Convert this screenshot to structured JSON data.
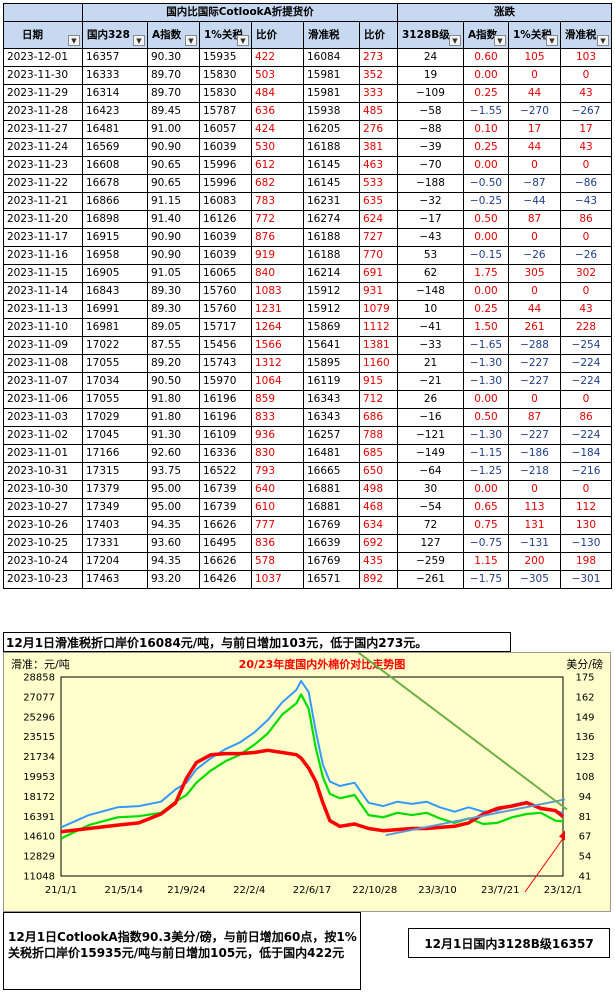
{
  "table": {
    "group_header_left": "国内比国际CotlookA折提货价",
    "group_header_right": "涨跌",
    "columns": [
      "日期",
      "国内328",
      "A指数",
      "1%关税",
      "比价",
      "滑准税",
      "比价",
      "3128B级",
      "A指数",
      "1%关税",
      "滑准税"
    ],
    "rows": [
      [
        "2023-12-01",
        "16357",
        "90.30",
        "15935",
        "422",
        "16084",
        "273",
        "24",
        "0.60",
        "105",
        "103"
      ],
      [
        "2023-11-30",
        "16333",
        "89.70",
        "15830",
        "503",
        "15981",
        "352",
        "19",
        "0.00",
        "0",
        "0"
      ],
      [
        "2023-11-29",
        "16314",
        "89.70",
        "15830",
        "484",
        "15981",
        "333",
        "−109",
        "0.25",
        "44",
        "43"
      ],
      [
        "2023-11-28",
        "16423",
        "89.45",
        "15787",
        "636",
        "15938",
        "485",
        "−58",
        "−1.55",
        "−270",
        "−267"
      ],
      [
        "2023-11-27",
        "16481",
        "91.00",
        "16057",
        "424",
        "16205",
        "276",
        "−88",
        "0.10",
        "17",
        "17"
      ],
      [
        "2023-11-24",
        "16569",
        "90.90",
        "16039",
        "530",
        "16188",
        "381",
        "−39",
        "0.25",
        "44",
        "43"
      ],
      [
        "2023-11-23",
        "16608",
        "90.65",
        "15996",
        "612",
        "16145",
        "463",
        "−70",
        "0.00",
        "0",
        "0"
      ],
      [
        "2023-11-22",
        "16678",
        "90.65",
        "15996",
        "682",
        "16145",
        "533",
        "−188",
        "−0.50",
        "−87",
        "−86"
      ],
      [
        "2023-11-21",
        "16866",
        "91.15",
        "16083",
        "783",
        "16231",
        "635",
        "−32",
        "−0.25",
        "−44",
        "−43"
      ],
      [
        "2023-11-20",
        "16898",
        "91.40",
        "16126",
        "772",
        "16274",
        "624",
        "−17",
        "0.50",
        "87",
        "86"
      ],
      [
        "2023-11-17",
        "16915",
        "90.90",
        "16039",
        "876",
        "16188",
        "727",
        "−43",
        "0.00",
        "0",
        "0"
      ],
      [
        "2023-11-16",
        "16958",
        "90.90",
        "16039",
        "919",
        "16188",
        "770",
        "53",
        "−0.15",
        "−26",
        "−26"
      ],
      [
        "2023-11-15",
        "16905",
        "91.05",
        "16065",
        "840",
        "16214",
        "691",
        "62",
        "1.75",
        "305",
        "302"
      ],
      [
        "2023-11-14",
        "16843",
        "89.30",
        "15760",
        "1083",
        "15912",
        "931",
        "−148",
        "0.00",
        "0",
        "0"
      ],
      [
        "2023-11-13",
        "16991",
        "89.30",
        "15760",
        "1231",
        "15912",
        "1079",
        "10",
        "0.25",
        "44",
        "43"
      ],
      [
        "2023-11-10",
        "16981",
        "89.05",
        "15717",
        "1264",
        "15869",
        "1112",
        "−41",
        "1.50",
        "261",
        "228"
      ],
      [
        "2023-11-09",
        "17022",
        "87.55",
        "15456",
        "1566",
        "15641",
        "1381",
        "−33",
        "−1.65",
        "−288",
        "−254"
      ],
      [
        "2023-11-08",
        "17055",
        "89.20",
        "15743",
        "1312",
        "15895",
        "1160",
        "21",
        "−1.30",
        "−227",
        "−224"
      ],
      [
        "2023-11-07",
        "17034",
        "90.50",
        "15970",
        "1064",
        "16119",
        "915",
        "−21",
        "−1.30",
        "−227",
        "−224"
      ],
      [
        "2023-11-06",
        "17055",
        "91.80",
        "16196",
        "859",
        "16343",
        "712",
        "26",
        "0.00",
        "0",
        "0"
      ],
      [
        "2023-11-03",
        "17029",
        "91.80",
        "16196",
        "833",
        "16343",
        "686",
        "−16",
        "0.50",
        "87",
        "86"
      ],
      [
        "2023-11-02",
        "17045",
        "91.30",
        "16109",
        "936",
        "16257",
        "788",
        "−121",
        "−1.30",
        "−227",
        "−224"
      ],
      [
        "2023-11-01",
        "17166",
        "92.60",
        "16336",
        "830",
        "16481",
        "685",
        "−149",
        "−1.15",
        "−186",
        "−184"
      ],
      [
        "2023-10-31",
        "17315",
        "93.75",
        "16522",
        "793",
        "16665",
        "650",
        "−64",
        "−1.25",
        "−218",
        "−216"
      ],
      [
        "2023-10-30",
        "17379",
        "95.00",
        "16739",
        "640",
        "16881",
        "498",
        "30",
        "0.00",
        "0",
        "0"
      ],
      [
        "2023-10-27",
        "17349",
        "95.00",
        "16739",
        "610",
        "16881",
        "468",
        "−54",
        "0.65",
        "113",
        "112"
      ],
      [
        "2023-10-26",
        "17403",
        "94.35",
        "16626",
        "777",
        "16769",
        "634",
        "72",
        "0.75",
        "131",
        "130"
      ],
      [
        "2023-10-25",
        "17331",
        "93.60",
        "16495",
        "836",
        "16639",
        "692",
        "127",
        "−0.75",
        "−131",
        "−130"
      ],
      [
        "2023-10-24",
        "17204",
        "94.35",
        "16626",
        "578",
        "16769",
        "435",
        "−259",
        "1.15",
        "200",
        "198"
      ],
      [
        "2023-10-23",
        "17463",
        "93.20",
        "16426",
        "1037",
        "16571",
        "892",
        "−261",
        "−1.75",
        "−305",
        "−301"
      ]
    ]
  },
  "note_top": "12月1日滑准税折口岸价16084元/吨，与前日增加103元，低于国内273元。",
  "note_bottom_left": "12月1日CotlookA指数90.3美分/磅，与前日增加60点，按1%关税折口岸价15935元/吨与前日增加105元，低于国内422元",
  "note_bottom_right": "12月1日国内3128B级16357",
  "colors": {
    "header_bg": "#c6d9f1",
    "chart_bg": "#ffffcc",
    "domestic": "#ff0000",
    "A_index": "#3399ff",
    "tariff": "#00dd00",
    "positive": "#e00000",
    "negative": "#1f3c88"
  },
  "chart_data": {
    "type": "line",
    "title": "20/23年度国内外棉价对比走势图",
    "ylabel_left": "滑准：元/吨",
    "ylabel_right": "美分/磅",
    "x_ticks": [
      "21/1/1",
      "21/5/14",
      "21/9/24",
      "22/2/4",
      "22/6/17",
      "22/10/28",
      "23/3/10",
      "23/7/21",
      "23/12/1"
    ],
    "y_left_ticks": [
      "28858",
      "27077",
      "25296",
      "23515",
      "21734",
      "19953",
      "18172",
      "16391",
      "14610",
      "12829",
      "11048"
    ],
    "y_right_ticks": [
      "175",
      "162",
      "149",
      "136",
      "123",
      "108",
      "94",
      "81",
      "67",
      "54",
      "41"
    ],
    "ylim_left": [
      11048,
      28858
    ],
    "ylim_right": [
      41,
      175
    ],
    "x": [
      "2021-01-01",
      "2021-03-01",
      "2021-05-01",
      "2021-06-15",
      "2021-08-01",
      "2021-09-01",
      "2021-09-24",
      "2021-10-15",
      "2021-11-15",
      "2021-12-15",
      "2022-01-15",
      "2022-02-15",
      "2022-03-15",
      "2022-04-15",
      "2022-05-15",
      "2022-05-25",
      "2022-06-10",
      "2022-06-25",
      "2022-07-10",
      "2022-07-25",
      "2022-08-15",
      "2022-09-15",
      "2022-10-15",
      "2022-11-15",
      "2022-12-15",
      "2023-01-15",
      "2023-02-15",
      "2023-03-15",
      "2023-04-15",
      "2023-05-15",
      "2023-06-15",
      "2023-07-15",
      "2023-08-15",
      "2023-09-15",
      "2023-10-15",
      "2023-11-15",
      "2023-12-01"
    ],
    "series": [
      {
        "name": "",
        "color_key": "domestic",
        "values": [
          15000,
          15300,
          15600,
          15800,
          16600,
          17600,
          19800,
          21200,
          21900,
          22000,
          22000,
          22100,
          22300,
          22100,
          21900,
          21600,
          20700,
          19500,
          17600,
          16000,
          15500,
          15700,
          15300,
          15100,
          15200,
          15300,
          15300,
          15400,
          15500,
          15800,
          16600,
          17100,
          17300,
          17600,
          17100,
          16900,
          16357
        ]
      },
      {
        "name": "",
        "color_key": "A_index",
        "values": [
          15400,
          16500,
          17200,
          17300,
          17700,
          18800,
          19400,
          20600,
          21600,
          22400,
          23000,
          23900,
          25000,
          26600,
          27700,
          28500,
          27500,
          24000,
          21000,
          19500,
          19100,
          19400,
          17600,
          17300,
          17700,
          17500,
          17700,
          17200,
          16800,
          17200,
          16800,
          16900,
          17400,
          17700,
          17000,
          16900,
          16650
        ]
      },
      {
        "name": "",
        "color_key": "tariff",
        "values": [
          14400,
          15600,
          16300,
          16400,
          16700,
          17700,
          18300,
          19400,
          20500,
          21300,
          21900,
          22800,
          23800,
          25500,
          26500,
          27300,
          26000,
          22500,
          19900,
          18400,
          18000,
          18300,
          16500,
          16300,
          16700,
          16500,
          16700,
          16200,
          15800,
          16200,
          15700,
          15800,
          16300,
          16600,
          16700,
          16000,
          15935
        ]
      }
    ]
  }
}
